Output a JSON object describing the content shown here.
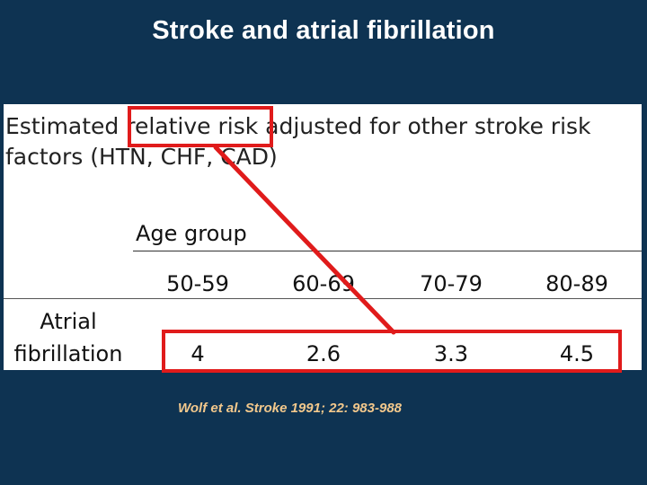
{
  "slide": {
    "title": "Stroke and atrial fibrillation"
  },
  "description": {
    "line1": "Estimated relative risk adjusted for other stroke risk",
    "line2": "factors (HTN, CHF, CAD)"
  },
  "table": {
    "group_label": "Age group",
    "columns": [
      "50-59",
      "60-69",
      "70-79",
      "80-89"
    ],
    "row_label": {
      "line1": "Atrial",
      "line2": "fibrillation"
    },
    "values": [
      "4",
      "2.6",
      "3.3",
      "4.5"
    ]
  },
  "citation": "Wolf et al. Stroke 1991; 22: 983-988",
  "colors": {
    "background": "#0e3352",
    "highlight": "#e01b1b",
    "citation": "#f2c88c"
  }
}
